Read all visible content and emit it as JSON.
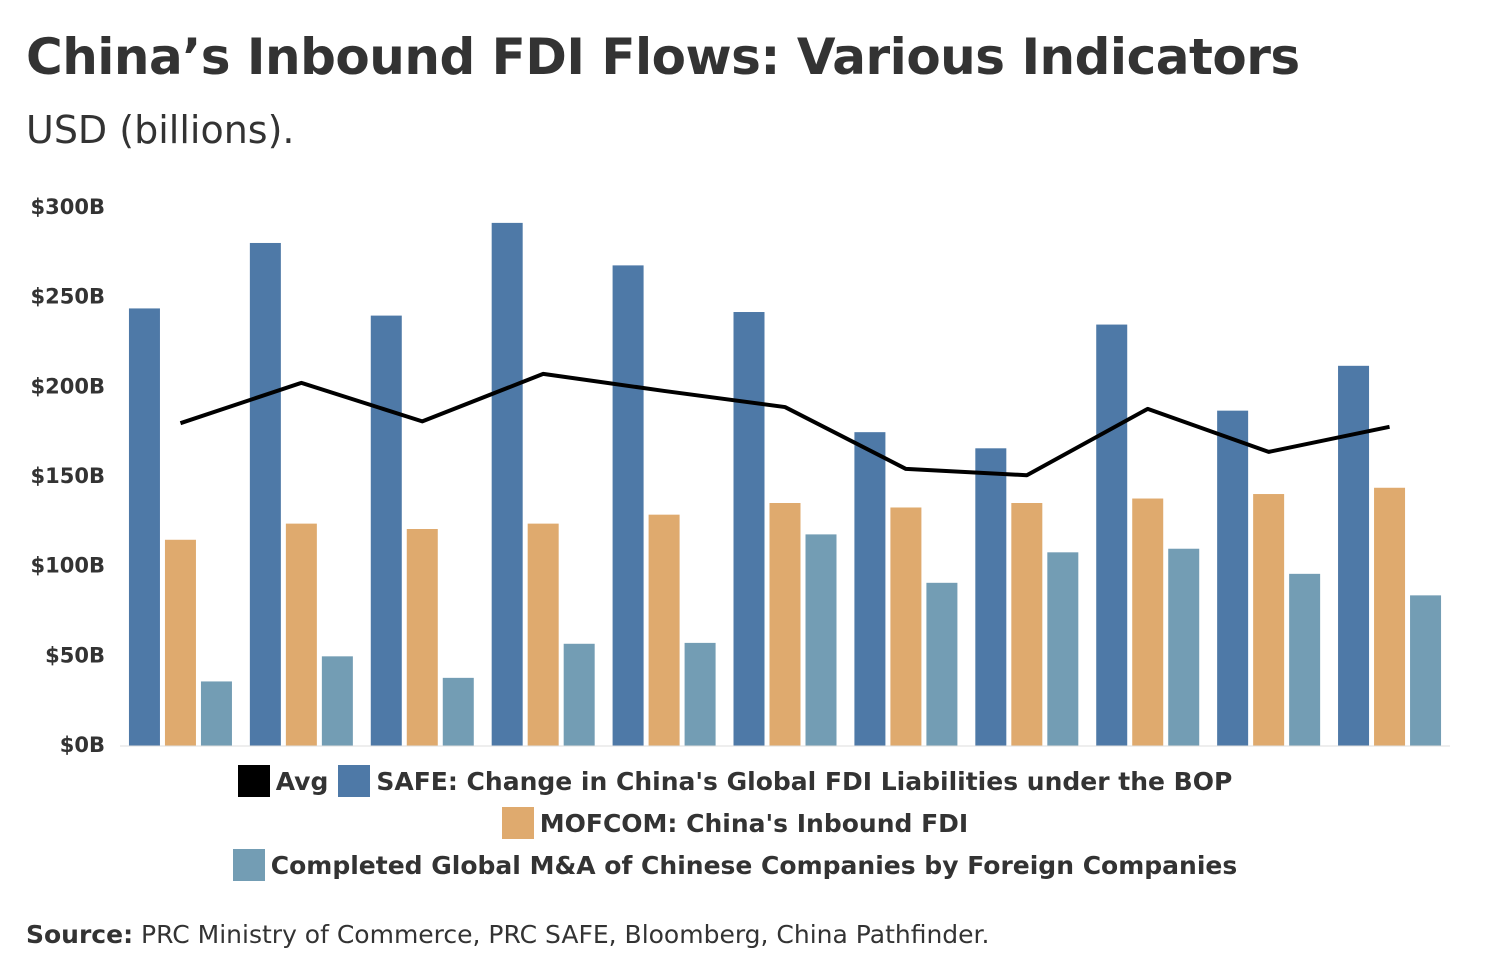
{
  "chart_data": {
    "type": "bar",
    "title": "China’s Inbound FDI Flows: Various Indicators",
    "subtitle": "USD (billions).",
    "categories": [
      null,
      null,
      null,
      null,
      null,
      null,
      null,
      null,
      null,
      null,
      null
    ],
    "series": [
      {
        "name": "Avg",
        "type": "line",
        "color": "#000000",
        "values": [
          180,
          202.5,
          181,
          207.5,
          198,
          189,
          154.5,
          151,
          188,
          164,
          178
        ]
      },
      {
        "name": "SAFE: Change in China's Global FDI Liabilities under the BOP",
        "type": "bar",
        "color": "#4e79a7",
        "values": [
          244,
          280.5,
          240,
          291.7,
          268,
          242,
          175,
          166,
          235,
          187,
          212
        ]
      },
      {
        "name": "MOFCOM: China's Inbound FDI",
        "type": "bar",
        "color": "#dfaa6e",
        "values": [
          115,
          124,
          121,
          124,
          129,
          135.5,
          133,
          135.5,
          138,
          140.5,
          144
        ]
      },
      {
        "name": "Completed Global M&A of Chinese Companies by Foreign Companies",
        "type": "bar",
        "color": "#739db4",
        "values": [
          36,
          50,
          38,
          57,
          57.5,
          118,
          91,
          108,
          110,
          96,
          84
        ]
      }
    ],
    "ylim": [
      0,
      300
    ],
    "yticks": [
      {
        "value": 0,
        "label": "$0B"
      },
      {
        "value": 50,
        "label": "$50B"
      },
      {
        "value": 100,
        "label": "$100B"
      },
      {
        "value": 150,
        "label": "$150B"
      },
      {
        "value": 200,
        "label": "$200B"
      },
      {
        "value": 250,
        "label": "$250B"
      },
      {
        "value": 300,
        "label": "$300B"
      }
    ],
    "grid": false,
    "legend": "bottom",
    "source_label": "Source:",
    "source_text": "PRC Ministry of Commerce, PRC SAFE, Bloomberg, China Pathfinder."
  }
}
